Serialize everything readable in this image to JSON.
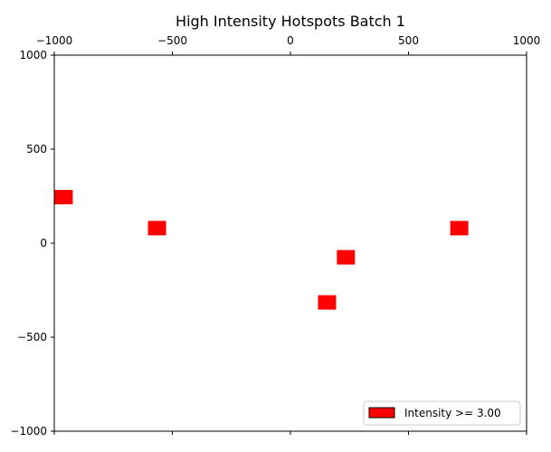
{
  "chart_data": {
    "type": "scatter",
    "title": "High Intensity Hotspots Batch 1",
    "xlabel": "",
    "ylabel": "",
    "xlim": [
      -1000,
      1000
    ],
    "ylim": [
      -1000,
      1000
    ],
    "x_ticks": [
      -1000,
      -500,
      0,
      500,
      1000
    ],
    "y_ticks": [
      1000,
      500,
      0,
      -500,
      -1000
    ],
    "x_ticks_position": "top",
    "grid": false,
    "legend": {
      "placement": "lower-right",
      "label": "Intensity >= 3.00"
    },
    "marker": {
      "shape": "square",
      "color": "#ff0000",
      "size": 80
    },
    "series": [
      {
        "points": [
          {
            "x": -960,
            "y": 245
          },
          {
            "x": -565,
            "y": 80
          },
          {
            "x": 715,
            "y": 80
          },
          {
            "x": 235,
            "y": -75
          },
          {
            "x": 155,
            "y": -315
          }
        ]
      }
    ]
  }
}
